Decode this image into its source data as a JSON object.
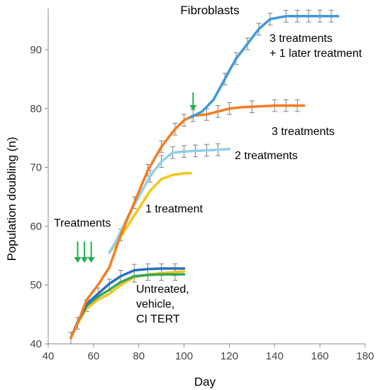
{
  "chart_data": {
    "type": "line",
    "title": "Fibroblasts",
    "xlabel": "Day",
    "ylabel": "Population doubling (n)",
    "xlim": [
      40,
      180
    ],
    "ylim": [
      40,
      97
    ],
    "x_ticks": [
      40,
      60,
      80,
      100,
      120,
      140,
      160,
      180
    ],
    "y_ticks": [
      40,
      50,
      60,
      70,
      80,
      90
    ],
    "grid": false,
    "legend": "none",
    "colors": {
      "later_treatment": "#3d9ad9",
      "three_treatments": "#f57c1f",
      "two_treatments": "#8fd0ea",
      "one_treatment": "#f7c51a",
      "untreated_blue": "#2b6fbf",
      "untreated_green": "#34a85a",
      "error_bars": "#808080",
      "arrows": "#21b14a"
    },
    "series": [
      {
        "key": "untreated_yellow",
        "color": "#f7c51a",
        "x": [
          50,
          53,
          57,
          62,
          67,
          72,
          78,
          84,
          90,
          96,
          100
        ],
        "y": [
          41,
          43.5,
          46,
          47.5,
          48.5,
          50,
          51.3,
          51.8,
          52,
          52.2,
          52.3
        ]
      },
      {
        "key": "untreated_green",
        "color": "#34a85a",
        "x": [
          50,
          53,
          57,
          62,
          67,
          72,
          78,
          84,
          90,
          96,
          100
        ],
        "y": [
          41,
          43.6,
          46.5,
          48,
          49.2,
          50.5,
          51.5,
          51.7,
          51.8,
          51.8,
          51.8
        ]
      },
      {
        "key": "untreated_blue",
        "color": "#2b6fbf",
        "x": [
          50,
          53,
          57,
          62,
          67,
          72,
          78,
          84,
          90,
          96,
          100
        ],
        "y": [
          41,
          43.7,
          46.8,
          48.5,
          50.2,
          51.5,
          52.5,
          52.7,
          52.8,
          52.8,
          52.8
        ]
      },
      {
        "key": "one_treatment",
        "color": "#f7c51a",
        "x": [
          67,
          70,
          75,
          80,
          85,
          90,
          95,
          100,
          103
        ],
        "y": [
          55.5,
          57,
          60,
          63,
          66,
          68,
          68.7,
          69,
          69
        ]
      },
      {
        "key": "two_treatments",
        "color": "#8fd0ea",
        "x": [
          67,
          70,
          75,
          80,
          85,
          90,
          95,
          100,
          105,
          110,
          115,
          120
        ],
        "y": [
          55.5,
          57.5,
          61.5,
          65,
          68.5,
          71,
          72.5,
          72.7,
          72.8,
          72.9,
          73,
          73.1
        ]
      },
      {
        "key": "three_treatments",
        "color": "#f57c1f",
        "x": [
          50,
          53,
          57,
          62,
          67,
          72,
          78,
          84,
          90,
          96,
          100,
          104,
          110,
          115,
          120,
          125,
          130,
          135,
          140,
          145,
          150,
          153
        ],
        "y": [
          41,
          43.5,
          47.5,
          50,
          53,
          58.5,
          64,
          69.5,
          73.5,
          76.5,
          78,
          78.8,
          79,
          79.5,
          80,
          80.2,
          80.3,
          80.4,
          80.5,
          80.5,
          80.5,
          80.5
        ]
      },
      {
        "key": "later_treatment",
        "color": "#3d9ad9",
        "x": [
          103,
          108,
          113,
          118,
          123,
          128,
          133,
          138,
          145,
          150,
          155,
          160,
          165,
          168
        ],
        "y": [
          78.5,
          79.5,
          81.5,
          85,
          88.5,
          91,
          93.5,
          95.2,
          95.7,
          95.7,
          95.7,
          95.7,
          95.7,
          95.7
        ]
      }
    ],
    "error_bars": [
      {
        "x": 50,
        "y": 41
      },
      {
        "x": 53,
        "y": 43.5
      },
      {
        "x": 57,
        "y": 46.5
      },
      {
        "x": 62,
        "y": 48.5
      },
      {
        "x": 67,
        "y": 50
      },
      {
        "x": 72,
        "y": 51.5
      },
      {
        "x": 78,
        "y": 52.5
      },
      {
        "x": 84,
        "y": 52.6
      },
      {
        "x": 90,
        "y": 52.6
      },
      {
        "x": 96,
        "y": 52.6
      },
      {
        "x": 78,
        "y": 51.5
      },
      {
        "x": 84,
        "y": 51.8
      },
      {
        "x": 90,
        "y": 51.8
      },
      {
        "x": 96,
        "y": 51.8
      },
      {
        "x": 72,
        "y": 58.5
      },
      {
        "x": 78,
        "y": 64
      },
      {
        "x": 84,
        "y": 69.5
      },
      {
        "x": 90,
        "y": 73.5
      },
      {
        "x": 96,
        "y": 76.5
      },
      {
        "x": 100,
        "y": 78
      },
      {
        "x": 104,
        "y": 78.8
      },
      {
        "x": 110,
        "y": 79
      },
      {
        "x": 115,
        "y": 79.5
      },
      {
        "x": 120,
        "y": 80
      },
      {
        "x": 130,
        "y": 80.3
      },
      {
        "x": 140,
        "y": 80.5
      },
      {
        "x": 145,
        "y": 80.5
      },
      {
        "x": 150,
        "y": 80.5
      },
      {
        "x": 85,
        "y": 68.5
      },
      {
        "x": 90,
        "y": 71
      },
      {
        "x": 95,
        "y": 72.5
      },
      {
        "x": 100,
        "y": 72.7
      },
      {
        "x": 105,
        "y": 72.8
      },
      {
        "x": 110,
        "y": 72.9
      },
      {
        "x": 115,
        "y": 73
      },
      {
        "x": 118,
        "y": 85
      },
      {
        "x": 123,
        "y": 88.5
      },
      {
        "x": 128,
        "y": 91
      },
      {
        "x": 133,
        "y": 93.5
      },
      {
        "x": 138,
        "y": 95.2
      },
      {
        "x": 145,
        "y": 95.7
      },
      {
        "x": 150,
        "y": 95.7
      },
      {
        "x": 155,
        "y": 95.7
      },
      {
        "x": 160,
        "y": 95.7
      },
      {
        "x": 165,
        "y": 95.7
      }
    ],
    "error_bar_half_height": 1.0,
    "annotations": [
      {
        "key": "later",
        "lines": [
          "3 treatments",
          "+ 1 later treatment"
        ]
      },
      {
        "key": "three",
        "lines": [
          "3 treatments"
        ]
      },
      {
        "key": "two",
        "lines": [
          "2 treatments"
        ]
      },
      {
        "key": "one",
        "lines": [
          "1 treatment"
        ]
      },
      {
        "key": "treatments",
        "lines": [
          "Treatments"
        ]
      },
      {
        "key": "untreated",
        "lines": [
          "Untreated,",
          "vehicle,",
          "CI TERT"
        ]
      }
    ],
    "treatment_arrows_days": [
      53,
      56,
      59
    ],
    "later_treatment_arrow_day": 104
  }
}
